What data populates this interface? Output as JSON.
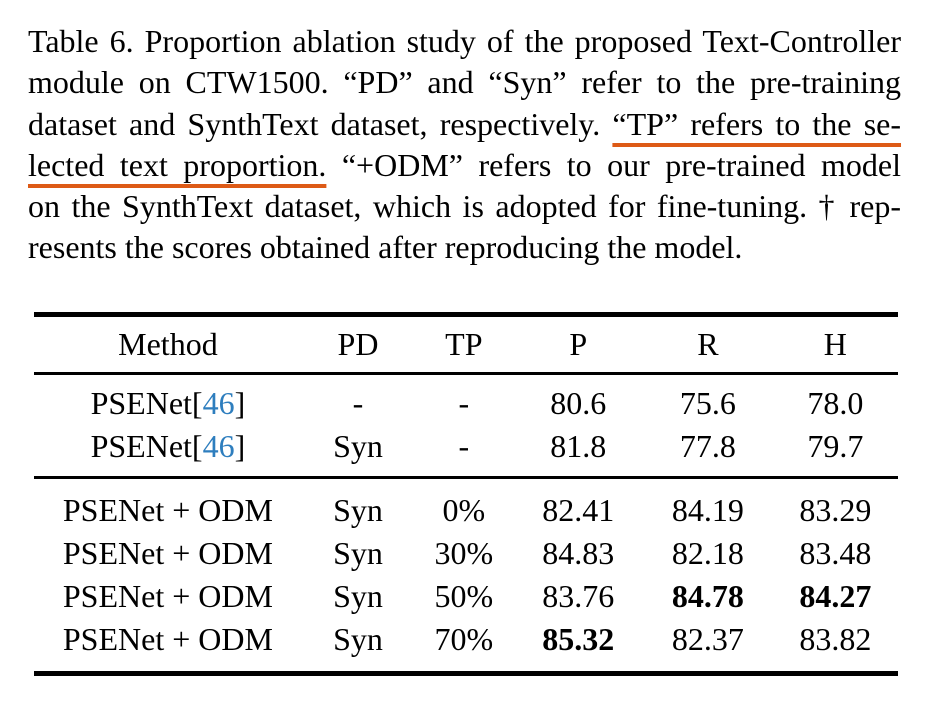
{
  "colors": {
    "background": "#ffffff",
    "text": "#000000",
    "citation_blue": "#2e7ebe",
    "underline_orange": "#dd5a16"
  },
  "caption": {
    "label": "Table 6.",
    "lines": [
      [
        {
          "t": "Table 6. Proportion ablation study of the proposed Text-Controller",
          "u": false
        }
      ],
      [
        {
          "t": "module on CTW1500. “PD” and “Syn” refer to the pre-training",
          "u": false
        }
      ],
      [
        {
          "t": "dataset and SynthText dataset, respectively. ",
          "u": false
        },
        {
          "t": "“TP” refers to the se-",
          "u": true
        }
      ],
      [
        {
          "t": "lected text proportion.",
          "u": true
        },
        {
          "t": " “+ODM” refers to our pre-trained model",
          "u": false
        }
      ],
      [
        {
          "t": "on the SynthText dataset, which is adopted for fine-tuning. † rep-",
          "u": false
        }
      ],
      [
        {
          "t": "resents the scores obtained after reproducing the model.",
          "u": false
        }
      ]
    ]
  },
  "table": {
    "headers": [
      "Method",
      "PD",
      "TP",
      "P",
      "R",
      "H"
    ],
    "cite_brackets": [
      "[",
      "]"
    ],
    "groups": [
      {
        "rows": [
          {
            "method": "PSENet",
            "cite": "46",
            "pd": "-",
            "tp": "-",
            "p": "80.6",
            "r": "75.6",
            "h": "78.0",
            "bold": []
          },
          {
            "method": "PSENet",
            "cite": "46",
            "pd": "Syn",
            "tp": "-",
            "p": "81.8",
            "r": "77.8",
            "h": "79.7",
            "bold": []
          }
        ]
      },
      {
        "rows": [
          {
            "method": "PSENet + ODM",
            "cite": null,
            "pd": "Syn",
            "tp": "0%",
            "p": "82.41",
            "r": "84.19",
            "h": "83.29",
            "bold": []
          },
          {
            "method": "PSENet + ODM",
            "cite": null,
            "pd": "Syn",
            "tp": "30%",
            "p": "84.83",
            "r": "82.18",
            "h": "83.48",
            "bold": []
          },
          {
            "method": "PSENet + ODM",
            "cite": null,
            "pd": "Syn",
            "tp": "50%",
            "p": "83.76",
            "r": "84.78",
            "h": "84.27",
            "bold": [
              "r",
              "h"
            ]
          },
          {
            "method": "PSENet + ODM",
            "cite": null,
            "pd": "Syn",
            "tp": "70%",
            "p": "85.32",
            "r": "82.37",
            "h": "83.82",
            "bold": [
              "p"
            ]
          }
        ]
      }
    ]
  }
}
